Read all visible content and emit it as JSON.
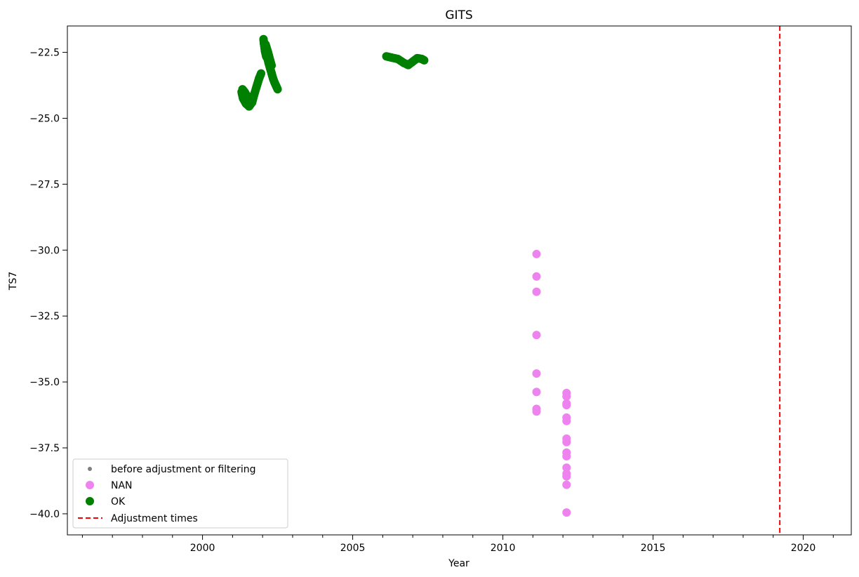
{
  "chart_data": {
    "type": "scatter",
    "title": "GITS",
    "xlabel": "Year",
    "ylabel": "TS7",
    "xlim": [
      1995.5,
      2021.6
    ],
    "ylim": [
      -40.8,
      -21.5
    ],
    "xticks": [
      2000,
      2005,
      2010,
      2015,
      2020
    ],
    "xtick_labels": [
      "2000",
      "2005",
      "2010",
      "2015",
      "2020"
    ],
    "yticks": [
      -40.0,
      -37.5,
      -35.0,
      -32.5,
      -30.0,
      -27.5,
      -25.0,
      -22.5
    ],
    "ytick_labels": [
      "−40.0",
      "−37.5",
      "−35.0",
      "−32.5",
      "−30.0",
      "−27.5",
      "−25.0",
      "−22.5"
    ],
    "grid": false,
    "legend_position": "lower left",
    "series": [
      {
        "name": "before adjustment or filtering",
        "color": "#808080",
        "marker": "small-dot",
        "points": []
      },
      {
        "name": "NAN",
        "color": "#ee82ee",
        "marker": "circle",
        "points": [
          [
            2011.12,
            -30.15
          ],
          [
            2011.12,
            -31.0
          ],
          [
            2011.12,
            -31.58
          ],
          [
            2011.12,
            -33.22
          ],
          [
            2011.12,
            -34.68
          ],
          [
            2011.12,
            -35.38
          ],
          [
            2011.12,
            -36.02
          ],
          [
            2011.12,
            -36.12
          ],
          [
            2012.12,
            -35.42
          ],
          [
            2012.12,
            -35.55
          ],
          [
            2012.12,
            -35.82
          ],
          [
            2012.12,
            -35.88
          ],
          [
            2012.12,
            -36.35
          ],
          [
            2012.12,
            -36.48
          ],
          [
            2012.12,
            -37.15
          ],
          [
            2012.12,
            -37.28
          ],
          [
            2012.12,
            -37.68
          ],
          [
            2012.12,
            -37.82
          ],
          [
            2012.12,
            -38.25
          ],
          [
            2012.12,
            -38.48
          ],
          [
            2012.12,
            -38.58
          ],
          [
            2012.12,
            -38.9
          ],
          [
            2012.12,
            -39.95
          ]
        ]
      },
      {
        "name": "OK",
        "color": "#008000",
        "marker": "circle",
        "segments": [
          [
            [
              2001.3,
              -24.0
            ],
            [
              2001.35,
              -24.25
            ],
            [
              2001.45,
              -24.45
            ],
            [
              2001.55,
              -24.55
            ],
            [
              2001.65,
              -24.4
            ],
            [
              2001.72,
              -24.1
            ],
            [
              2001.8,
              -23.8
            ],
            [
              2001.88,
              -23.5
            ],
            [
              2001.95,
              -23.3
            ]
          ],
          [
            [
              2001.33,
              -23.9
            ],
            [
              2001.4,
              -24.0
            ],
            [
              2001.5,
              -24.2
            ],
            [
              2001.6,
              -24.3
            ],
            [
              2001.68,
              -24.2
            ]
          ],
          [
            [
              2002.03,
              -22.0
            ],
            [
              2002.05,
              -22.2
            ],
            [
              2002.08,
              -22.45
            ],
            [
              2002.12,
              -22.65
            ],
            [
              2002.17,
              -22.75
            ],
            [
              2002.2,
              -22.9
            ],
            [
              2002.25,
              -23.1
            ],
            [
              2002.3,
              -23.3
            ],
            [
              2002.35,
              -23.5
            ],
            [
              2002.4,
              -23.65
            ],
            [
              2002.46,
              -23.8
            ],
            [
              2002.5,
              -23.9
            ]
          ],
          [
            [
              2002.1,
              -22.2
            ],
            [
              2002.18,
              -22.5
            ],
            [
              2002.25,
              -22.8
            ],
            [
              2002.3,
              -23.0
            ]
          ],
          [
            [
              2006.12,
              -22.65
            ],
            [
              2006.3,
              -22.7
            ],
            [
              2006.5,
              -22.75
            ],
            [
              2006.7,
              -22.9
            ],
            [
              2006.85,
              -22.98
            ],
            [
              2007.0,
              -22.85
            ],
            [
              2007.15,
              -22.72
            ],
            [
              2007.3,
              -22.75
            ],
            [
              2007.38,
              -22.8
            ]
          ]
        ]
      },
      {
        "name": "Adjustment times",
        "color": "#ff0000",
        "marker": "dashed-line",
        "vlines_x": [
          2019.22
        ]
      }
    ]
  }
}
